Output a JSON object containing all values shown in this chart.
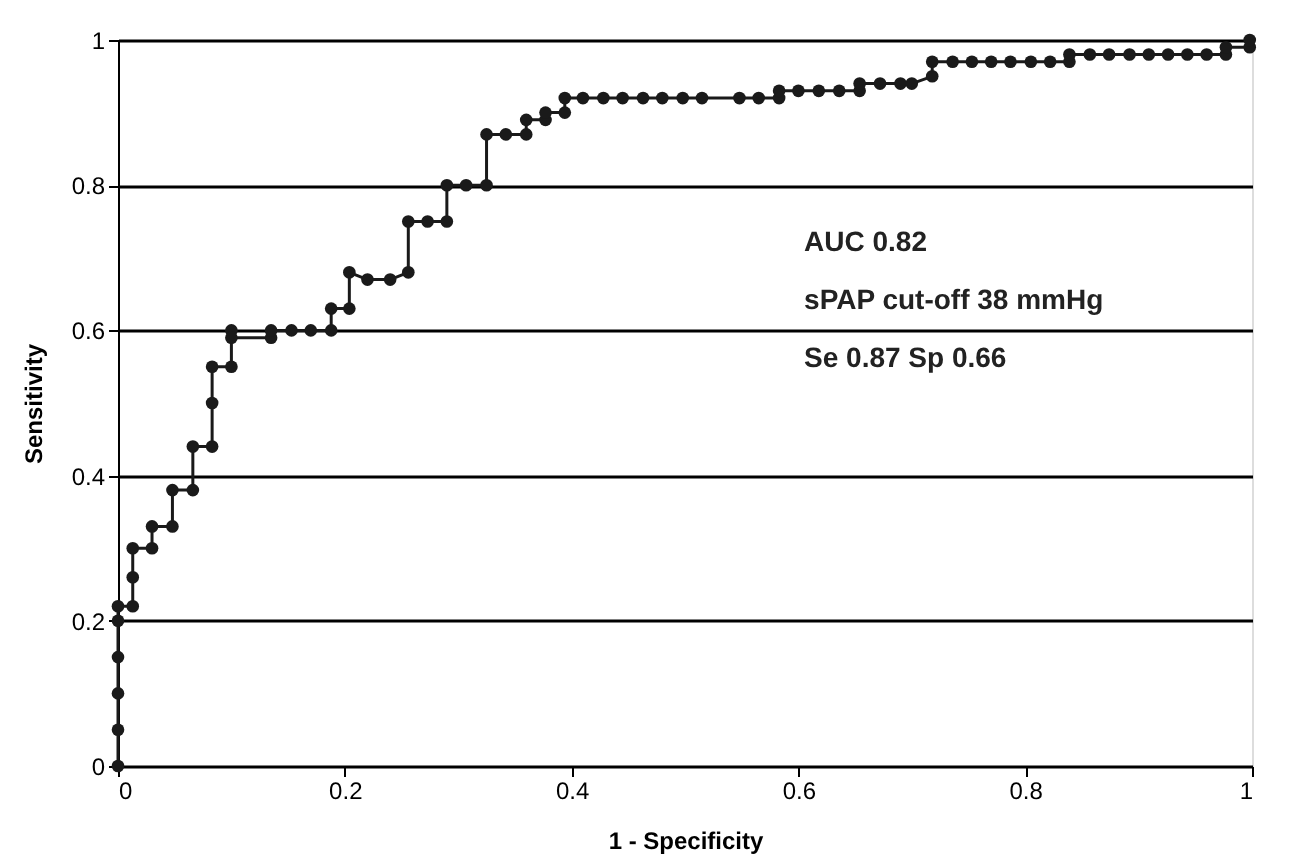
{
  "chart_data": {
    "type": "line",
    "xlabel": "1 - Specificity",
    "ylabel": "Sensitivity",
    "x": [
      0,
      0,
      0,
      0,
      0,
      0,
      0.013,
      0.013,
      0.013,
      0.03,
      0.03,
      0.048,
      0.048,
      0.066,
      0.066,
      0.083,
      0.083,
      0.083,
      0.1,
      0.1,
      0.1,
      0.135,
      0.135,
      0.153,
      0.17,
      0.188,
      0.188,
      0.204,
      0.204,
      0.22,
      0.24,
      0.256,
      0.256,
      0.273,
      0.29,
      0.29,
      0.307,
      0.325,
      0.325,
      0.342,
      0.36,
      0.36,
      0.377,
      0.377,
      0.394,
      0.394,
      0.41,
      0.428,
      0.445,
      0.463,
      0.48,
      0.498,
      0.515,
      0.548,
      0.565,
      0.583,
      0.583,
      0.6,
      0.618,
      0.636,
      0.654,
      0.654,
      0.672,
      0.69,
      0.7,
      0.718,
      0.718,
      0.736,
      0.753,
      0.77,
      0.787,
      0.805,
      0.822,
      0.839,
      0.839,
      0.857,
      0.874,
      0.892,
      0.909,
      0.926,
      0.943,
      0.96,
      0.977,
      0.977,
      0.998,
      0.998
    ],
    "series": [
      {
        "color": "#1a1a1a",
        "values": [
          0,
          0.05,
          0.1,
          0.15,
          0.2,
          0.22,
          0.22,
          0.26,
          0.3,
          0.3,
          0.33,
          0.33,
          0.38,
          0.38,
          0.44,
          0.44,
          0.5,
          0.55,
          0.55,
          0.6,
          0.59,
          0.59,
          0.6,
          0.6,
          0.6,
          0.6,
          0.63,
          0.63,
          0.68,
          0.67,
          0.67,
          0.68,
          0.75,
          0.75,
          0.75,
          0.8,
          0.8,
          0.8,
          0.87,
          0.87,
          0.87,
          0.89,
          0.89,
          0.9,
          0.9,
          0.92,
          0.92,
          0.92,
          0.92,
          0.92,
          0.92,
          0.92,
          0.92,
          0.92,
          0.92,
          0.92,
          0.93,
          0.93,
          0.93,
          0.93,
          0.93,
          0.94,
          0.94,
          0.94,
          0.94,
          0.95,
          0.97,
          0.97,
          0.97,
          0.97,
          0.97,
          0.97,
          0.97,
          0.97,
          0.98,
          0.98,
          0.98,
          0.98,
          0.98,
          0.98,
          0.98,
          0.98,
          0.98,
          0.99,
          0.99,
          1.0
        ]
      }
    ],
    "xlim": [
      0,
      1
    ],
    "xticks": [
      0,
      0.2,
      0.4,
      0.6,
      0.8,
      1
    ],
    "ylim": [
      0,
      1
    ],
    "yticks": [
      0,
      0.2,
      0.4,
      0.6,
      0.8,
      1
    ],
    "grid": "y",
    "marker": "circle",
    "line_style": "solid",
    "annotations": [
      "AUC 0.82",
      "sPAP cut-off 38 mmHg",
      "Se 0.87 Sp 0.66"
    ]
  }
}
